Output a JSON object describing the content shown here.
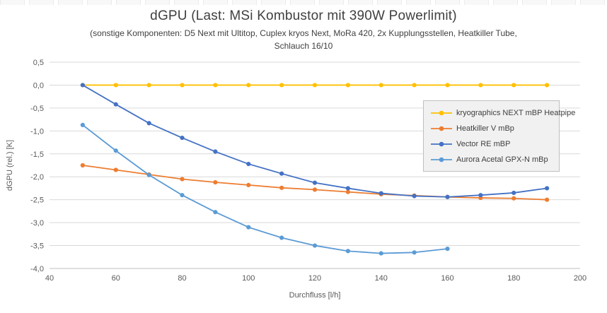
{
  "title": "dGPU (Last: MSi Kombustor mit 390W Powerlimit)",
  "subtitle_line1": "(sonstige Komponenten:  D5 Next mit Ultitop, Cuplex kryos Next, MoRa 420,  2x Kupplungsstellen, Heatkiller Tube,",
  "subtitle_line2": "Schlauch 16/10",
  "colors": {
    "gridline": "#D9D9D9",
    "axis_line": "#BFBFBF",
    "tick_text": "#595959",
    "title_text": "#404040"
  },
  "chart_data": {
    "type": "line",
    "title": "dGPU (Last: MSi Kombustor mit 390W Powerlimit)",
    "xlabel": "Durchfluss [l/h]",
    "ylabel": "dGPU (rel.) [K]",
    "xlim": [
      40,
      200
    ],
    "ylim": [
      -4.0,
      0.5
    ],
    "grid": true,
    "legend_position": "inside-right",
    "x_ticks": [
      40,
      60,
      80,
      100,
      120,
      140,
      160,
      180,
      200
    ],
    "y_ticks": [
      {
        "value": 0.5,
        "label": "0,5"
      },
      {
        "value": 0.0,
        "label": "0,0"
      },
      {
        "value": -0.5,
        "label": "-0,5"
      },
      {
        "value": -1.0,
        "label": "-1,0"
      },
      {
        "value": -1.5,
        "label": "-1,5"
      },
      {
        "value": -2.0,
        "label": "-2,0"
      },
      {
        "value": -2.5,
        "label": "-2,5"
      },
      {
        "value": -3.0,
        "label": "-3,0"
      },
      {
        "value": -3.5,
        "label": "-3,5"
      },
      {
        "value": -4.0,
        "label": "-4,0"
      }
    ],
    "series": [
      {
        "name": "kryographics NEXT mBP Heatpipe",
        "color": "#FFC000",
        "points": [
          [
            50,
            0
          ],
          [
            60,
            0
          ],
          [
            70,
            0
          ],
          [
            80,
            0
          ],
          [
            90,
            0
          ],
          [
            100,
            0
          ],
          [
            110,
            0
          ],
          [
            120,
            0
          ],
          [
            130,
            0
          ],
          [
            140,
            0
          ],
          [
            150,
            0
          ],
          [
            160,
            0
          ],
          [
            170,
            0
          ],
          [
            180,
            0
          ],
          [
            190,
            0
          ]
        ]
      },
      {
        "name": "Heatkiller V mBp",
        "color": "#ED7D31",
        "points": [
          [
            50,
            -1.75
          ],
          [
            60,
            -1.85
          ],
          [
            70,
            -1.95
          ],
          [
            80,
            -2.05
          ],
          [
            90,
            -2.12
          ],
          [
            100,
            -2.18
          ],
          [
            110,
            -2.24
          ],
          [
            120,
            -2.28
          ],
          [
            130,
            -2.33
          ],
          [
            140,
            -2.38
          ],
          [
            150,
            -2.41
          ],
          [
            160,
            -2.44
          ],
          [
            170,
            -2.46
          ],
          [
            180,
            -2.47
          ],
          [
            190,
            -2.5
          ]
        ]
      },
      {
        "name": "Vector RE mBP",
        "color": "#4472C4",
        "points": [
          [
            50,
            0
          ],
          [
            60,
            -0.42
          ],
          [
            70,
            -0.83
          ],
          [
            80,
            -1.15
          ],
          [
            90,
            -1.45
          ],
          [
            100,
            -1.72
          ],
          [
            110,
            -1.93
          ],
          [
            120,
            -2.13
          ],
          [
            130,
            -2.25
          ],
          [
            140,
            -2.36
          ],
          [
            150,
            -2.42
          ],
          [
            160,
            -2.44
          ],
          [
            170,
            -2.4
          ],
          [
            180,
            -2.35
          ],
          [
            190,
            -2.25
          ]
        ]
      },
      {
        "name": "Aurora Acetal GPX-N mBp",
        "color": "#5B9BD5",
        "points": [
          [
            50,
            -0.87
          ],
          [
            60,
            -1.43
          ],
          [
            70,
            -1.96
          ],
          [
            80,
            -2.4
          ],
          [
            90,
            -2.77
          ],
          [
            100,
            -3.1
          ],
          [
            110,
            -3.33
          ],
          [
            120,
            -3.5
          ],
          [
            130,
            -3.62
          ],
          [
            140,
            -3.67
          ],
          [
            150,
            -3.65
          ],
          [
            160,
            -3.57
          ]
        ]
      }
    ]
  }
}
